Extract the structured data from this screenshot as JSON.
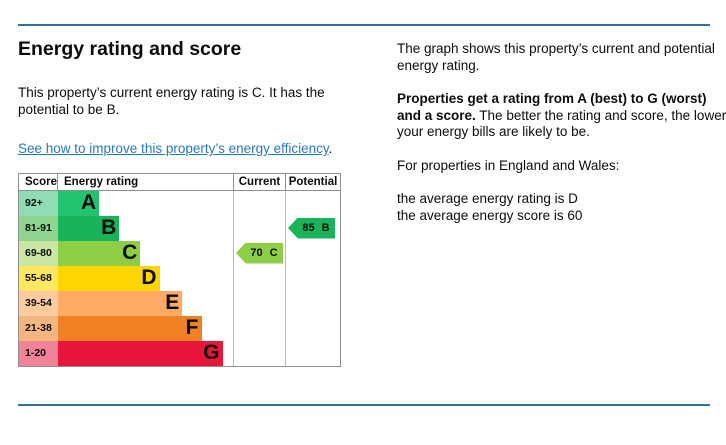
{
  "page": {
    "left": {
      "heading": "Energy rating and score",
      "intro": "This property’s current energy rating is C. It has the potential to be B.",
      "link_text": "See how to improve this property’s energy efficiency",
      "link_suffix": "."
    },
    "right": {
      "graph_description": "The graph shows this property’s current and potential energy rating.",
      "rating_explanation_bold": "Properties get a rating from A (best) to G (worst) and a score.",
      "rating_explanation_rest": " The better the rating and score, the lower your energy bills are likely to be.",
      "region_note": "For properties in England and Wales:",
      "average_rating_line": "the average energy rating is D",
      "average_score_line": "the average energy score is 60"
    },
    "colors": {
      "rule_blue": "#2e7295",
      "link_blue": "#2878bf",
      "text": "#0b0c0c",
      "grid_line": "#8f8f8f"
    }
  },
  "chart_data": {
    "type": "bar",
    "title": "Energy rating and score",
    "columns": [
      "Score",
      "Energy rating",
      "Current",
      "Potential"
    ],
    "bands": [
      {
        "letter": "A",
        "score_range": "92+",
        "color": "#21c36f",
        "tint": "#8fdcb5",
        "width_pct": "23.5%"
      },
      {
        "letter": "B",
        "score_range": "81-91",
        "color": "#19b459",
        "tint": "#8ed38e",
        "width_pct": "35%"
      },
      {
        "letter": "C",
        "score_range": "69-80",
        "color": "#8dce46",
        "tint": "#c9e6a4",
        "width_pct": "47%"
      },
      {
        "letter": "D",
        "score_range": "55-68",
        "color": "#ffd500",
        "tint": "#ffe75f",
        "width_pct": "58%"
      },
      {
        "letter": "E",
        "score_range": "39-54",
        "color": "#fcaa65",
        "tint": "#fdcb9e",
        "width_pct": "71%"
      },
      {
        "letter": "F",
        "score_range": "21-38",
        "color": "#ef8023",
        "tint": "#f5b57e",
        "width_pct": "82%"
      },
      {
        "letter": "G",
        "score_range": "1-20",
        "color": "#e9153b",
        "tint": "#f08398",
        "width_pct": "94%"
      }
    ],
    "current": {
      "score": "70",
      "band": "C",
      "color": "#8dce46",
      "column": "Current"
    },
    "potential": {
      "score": "85",
      "band": "B",
      "color": "#19b459",
      "column": "Potential"
    }
  }
}
